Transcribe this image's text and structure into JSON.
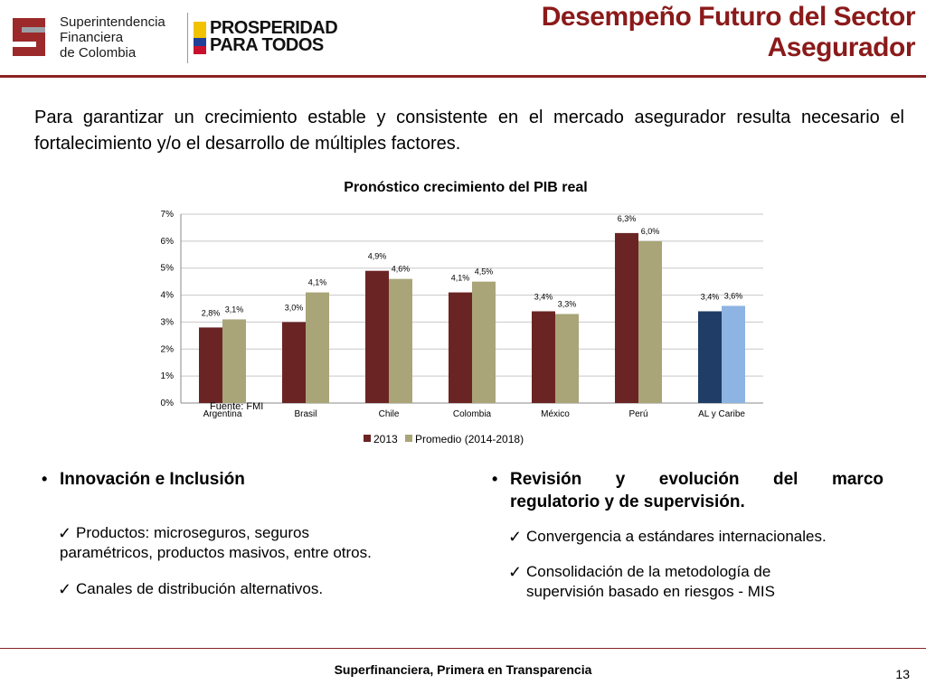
{
  "header": {
    "logo_sfc_lines": [
      "Superintendencia",
      "Financiera",
      "de Colombia"
    ],
    "logo_prosperidad_lines": [
      "PROSPERIDAD",
      "PARA TODOS"
    ],
    "title_line1": "Desempeño Futuro del Sector",
    "title_line2": "Asegurador"
  },
  "intro": "Para garantizar un crecimiento estable y consistente en el mercado asegurador resulta necesario el fortalecimiento y/o el desarrollo de múltiples factores.",
  "chart_data": {
    "type": "bar",
    "title": "Pronóstico crecimiento del PIB real",
    "categories": [
      "Argentina",
      "Brasil",
      "Chile",
      "Colombia",
      "México",
      "Perú",
      "AL y Caribe"
    ],
    "series": [
      {
        "name": "2013",
        "values": [
          2.8,
          3.0,
          4.9,
          4.1,
          3.4,
          6.3,
          3.4
        ],
        "labels": [
          "2,8%",
          "3,0%",
          "4,9%",
          "4,1%",
          "3,4%",
          "6,3%",
          "3,4%"
        ],
        "color": "#6b2424",
        "highlight_color": "#1f3d66"
      },
      {
        "name": "Promedio (2014-2018)",
        "values": [
          3.1,
          4.1,
          4.6,
          4.5,
          3.3,
          6.0,
          3.6
        ],
        "labels": [
          "3,1%",
          "4,1%",
          "4,6%",
          "4,5%",
          "3,3%",
          "6,0%",
          "3,6%"
        ],
        "color": "#a9a578",
        "highlight_color": "#8db4e2"
      }
    ],
    "highlight_category": "AL y Caribe",
    "yticks": [
      "0%",
      "1%",
      "2%",
      "3%",
      "4%",
      "5%",
      "6%",
      "7%"
    ],
    "ylim": [
      0,
      7
    ],
    "grid": true,
    "legend": "bottom",
    "source": "Fuente: FMI"
  },
  "bullets_left": {
    "heading": "Innovación e Inclusión",
    "items": [
      {
        "line1": "Productos: microseguros, seguros",
        "line2": "paramétricos, productos masivos, entre otros."
      },
      {
        "line1": "Canales de distribución alternativos.",
        "line2": ""
      }
    ]
  },
  "bullets_right": {
    "heading_line1": "Revisión y evolución del marco",
    "heading_line2": "regulatorio y de supervisión.",
    "items": [
      {
        "line1": "Convergencia a estándares internacionales.",
        "line2": ""
      },
      {
        "line1": "Consolidación de la metodología de",
        "line2": "supervisión basado en riesgos - MIS"
      }
    ]
  },
  "footer": "Superfinanciera, Primera en Transparencia",
  "page_number": "13",
  "colors": {
    "brand_red": "#8b1a1a",
    "rule": "#8b2323"
  }
}
